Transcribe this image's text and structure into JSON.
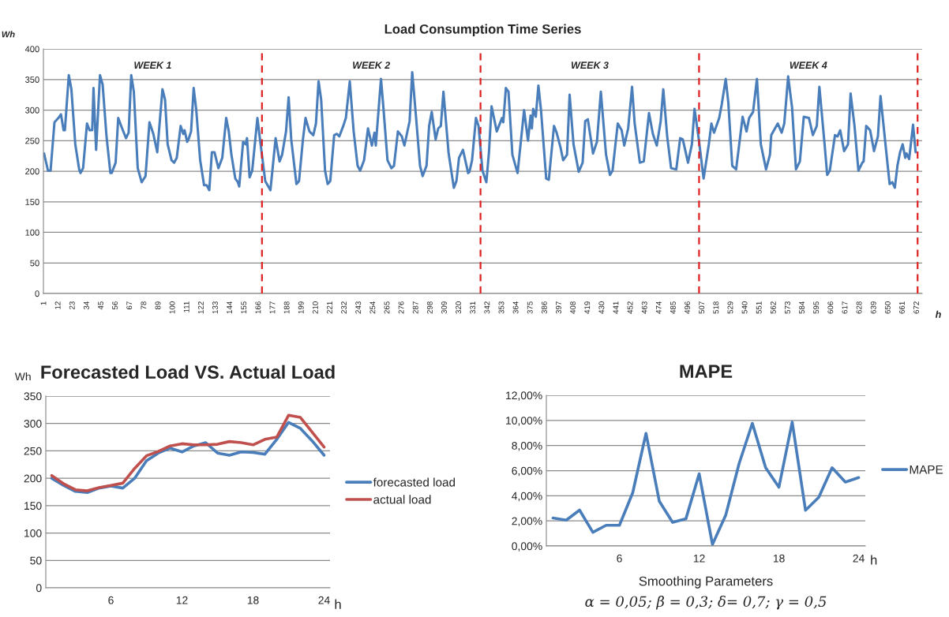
{
  "chart_data": [
    {
      "type": "line",
      "title": "Load Consumption Time Series",
      "xlabel": "h",
      "ylabel": "Wh",
      "xlim": [
        0.5,
        676
      ],
      "xticks": [
        1,
        12,
        23,
        34,
        45,
        56,
        67,
        78,
        89,
        100,
        111,
        122,
        133,
        144,
        155,
        166,
        177,
        188,
        199,
        210,
        221,
        232,
        243,
        254,
        265,
        276,
        287,
        298,
        309,
        320,
        331,
        342,
        353,
        364,
        375,
        386,
        397,
        408,
        419,
        430,
        441,
        452,
        463,
        474,
        485,
        496,
        507,
        518,
        529,
        540,
        551,
        562,
        573,
        584,
        595,
        606,
        617,
        628,
        639,
        650,
        661,
        672
      ],
      "ylim": [
        0,
        400
      ],
      "yticks": [
        0,
        50,
        100,
        150,
        200,
        250,
        300,
        350,
        400
      ],
      "grid": "y",
      "legend": false,
      "ref_lines": [
        {
          "axis": "x",
          "value": 168.5,
          "color": "#e02020",
          "line_style": "dashed"
        },
        {
          "axis": "x",
          "value": 336.5,
          "color": "#e02020",
          "line_style": "dashed"
        },
        {
          "axis": "x",
          "value": 504.5,
          "color": "#e02020",
          "line_style": "dashed"
        },
        {
          "axis": "x",
          "value": 672.5,
          "color": "#e02020",
          "line_style": "dashed"
        }
      ],
      "annotations": [
        "WEEK 1",
        "WEEK 2",
        "WEEK 3",
        "WEEK 4"
      ],
      "series": [
        {
          "color": "#4a7ebb",
          "x": [
            1,
            4,
            6,
            9,
            12,
            14,
            16,
            17,
            20,
            22,
            25,
            28,
            29,
            31,
            34,
            36,
            38,
            39,
            41,
            44,
            46,
            49,
            52,
            53,
            56,
            58,
            61,
            64,
            66,
            68,
            70,
            73,
            76,
            79,
            82,
            85,
            88,
            92,
            94,
            96,
            99,
            101,
            103,
            106,
            108,
            109,
            111,
            112,
            114,
            116,
            118,
            121,
            124,
            126,
            128,
            130,
            132,
            135,
            138,
            141,
            143,
            145,
            148,
            150,
            151,
            154,
            156,
            157,
            159,
            161,
            165,
            167,
            171,
            175,
            179,
            182,
            184,
            187,
            189,
            191,
            195,
            197,
            200,
            202,
            205,
            208,
            210,
            212,
            214,
            217,
            219,
            221,
            224,
            226,
            228,
            231,
            233,
            236,
            239,
            242,
            244,
            247,
            250,
            253,
            255,
            256,
            260,
            262,
            265,
            268,
            270,
            273,
            276,
            278,
            282,
            284,
            287,
            290,
            292,
            295,
            297,
            299,
            302,
            304,
            306,
            308,
            312,
            316,
            318,
            320,
            323,
            327,
            328,
            330,
            333,
            335,
            338,
            341,
            343,
            345,
            349,
            353,
            354,
            356,
            358,
            361,
            365,
            370,
            373,
            375,
            376,
            377,
            379,
            381,
            383,
            387,
            389,
            393,
            395,
            398,
            400,
            403,
            405,
            408,
            412,
            415,
            417,
            419,
            423,
            426,
            429,
            433,
            436,
            438,
            442,
            445,
            447,
            450,
            453,
            455,
            459,
            462,
            466,
            469,
            472,
            475,
            477,
            480,
            483,
            487,
            490,
            492,
            496,
            499,
            501,
            504,
            508,
            512,
            514,
            516,
            520,
            522,
            525,
            527,
            530,
            533,
            538,
            541,
            543,
            546,
            549,
            552,
            556,
            559,
            560,
            565,
            568,
            570,
            573,
            576,
            579,
            582,
            585,
            589,
            592,
            595,
            597,
            601,
            603,
            605,
            609,
            611,
            613,
            616,
            619,
            621,
            624,
            627,
            630,
            631,
            633,
            636,
            639,
            642,
            644,
            648,
            651,
            653,
            655,
            657,
            659,
            661,
            663,
            664,
            666,
            669,
            671
          ],
          "values": [
            229,
            201,
            201,
            280,
            287,
            293,
            267,
            267,
            357,
            334,
            244,
            203,
            197,
            205,
            278,
            267,
            267,
            336,
            235,
            357,
            342,
            257,
            197,
            197,
            214,
            287,
            270,
            254,
            263,
            357,
            330,
            205,
            182,
            192,
            280,
            261,
            231,
            334,
            317,
            244,
            218,
            214,
            222,
            274,
            261,
            267,
            248,
            252,
            265,
            336,
            300,
            218,
            177,
            177,
            169,
            231,
            231,
            205,
            222,
            287,
            265,
            227,
            188,
            182,
            175,
            248,
            244,
            254,
            190,
            201,
            287,
            252,
            184,
            169,
            254,
            216,
            227,
            265,
            321,
            252,
            179,
            184,
            252,
            287,
            265,
            259,
            278,
            347,
            317,
            201,
            179,
            184,
            259,
            261,
            257,
            274,
            287,
            347,
            265,
            209,
            201,
            218,
            270,
            242,
            263,
            242,
            351,
            300,
            218,
            205,
            209,
            265,
            257,
            242,
            282,
            362,
            287,
            209,
            192,
            209,
            274,
            297,
            252,
            270,
            274,
            330,
            229,
            173,
            184,
            222,
            235,
            197,
            199,
            218,
            287,
            274,
            201,
            182,
            231,
            306,
            265,
            287,
            280,
            336,
            330,
            227,
            197,
            300,
            250,
            291,
            270,
            302,
            289,
            340,
            300,
            188,
            186,
            274,
            263,
            239,
            218,
            227,
            325,
            244,
            199,
            214,
            282,
            285,
            229,
            248,
            330,
            227,
            194,
            201,
            278,
            267,
            242,
            270,
            338,
            278,
            214,
            216,
            295,
            261,
            242,
            282,
            334,
            257,
            205,
            203,
            254,
            252,
            214,
            244,
            302,
            257,
            188,
            244,
            278,
            263,
            287,
            310,
            351,
            312,
            209,
            203,
            289,
            265,
            287,
            297,
            351,
            244,
            203,
            227,
            259,
            278,
            263,
            278,
            355,
            304,
            203,
            216,
            289,
            287,
            259,
            274,
            338,
            244,
            194,
            201,
            259,
            257,
            267,
            233,
            244,
            327,
            274,
            201,
            214,
            216,
            274,
            267,
            233,
            257,
            323,
            240,
            179,
            182,
            173,
            209,
            231,
            244,
            222,
            229,
            220,
            276,
            231
          ]
        }
      ]
    },
    {
      "type": "line",
      "title": "Forecasted Load VS. Actual Load",
      "xlabel": "h",
      "ylabel": "Wh",
      "categories": [
        null,
        null,
        null,
        null,
        null,
        "6",
        null,
        null,
        null,
        null,
        null,
        "12",
        null,
        null,
        null,
        null,
        null,
        "18",
        null,
        null,
        null,
        null,
        null,
        "24"
      ],
      "ylim": [
        0,
        350
      ],
      "yticks": [
        0,
        50,
        100,
        150,
        200,
        250,
        300,
        350
      ],
      "grid": "y",
      "legend": "right",
      "series": [
        {
          "name": "forecasted load",
          "color": "#4a7ebb",
          "values": [
            200,
            187,
            176,
            174,
            182,
            186,
            182,
            200,
            232,
            246,
            255,
            248,
            259,
            265,
            246,
            242,
            248,
            247,
            244,
            271,
            302,
            291,
            268,
            242
          ]
        },
        {
          "name": "actual load",
          "color": "#c0504d",
          "values": [
            205,
            190,
            179,
            177,
            183,
            187,
            191,
            218,
            241,
            249,
            259,
            263,
            261,
            261,
            262,
            267,
            265,
            261,
            271,
            275,
            315,
            311,
            284,
            257
          ]
        }
      ]
    },
    {
      "type": "line",
      "title": "MAPE",
      "xlabel": "h",
      "categories": [
        null,
        null,
        null,
        null,
        null,
        "6",
        null,
        null,
        null,
        null,
        null,
        "12",
        null,
        null,
        null,
        null,
        null,
        "18",
        null,
        null,
        null,
        null,
        null,
        "24"
      ],
      "ylim": [
        0,
        12
      ],
      "yticks": [
        {
          "value": 0,
          "label": "0,00%"
        },
        {
          "value": 2,
          "label": "2,00%"
        },
        {
          "value": 4,
          "label": "4,00%"
        },
        {
          "value": 6,
          "label": "6,00%"
        },
        {
          "value": 8,
          "label": "8,00%"
        },
        {
          "value": 10,
          "label": "10,00%"
        },
        {
          "value": 12,
          "label": "12,00%"
        }
      ],
      "grid": "y",
      "legend": "right",
      "annotations": [
        "Smoothing Parameters",
        "α = 0,05; β = 0,3; δ= 0,7; γ = 0,5"
      ],
      "series": [
        {
          "name": "MAPE",
          "color": "#4a7ebb",
          "values": [
            2.23,
            2.06,
            2.86,
            1.09,
            1.65,
            1.65,
            4.24,
            8.97,
            3.56,
            1.89,
            2.16,
            5.75,
            0.12,
            2.47,
            6.55,
            9.77,
            6.23,
            4.68,
            9.87,
            2.84,
            3.88,
            6.23,
            5.09,
            5.45
          ]
        }
      ]
    }
  ]
}
